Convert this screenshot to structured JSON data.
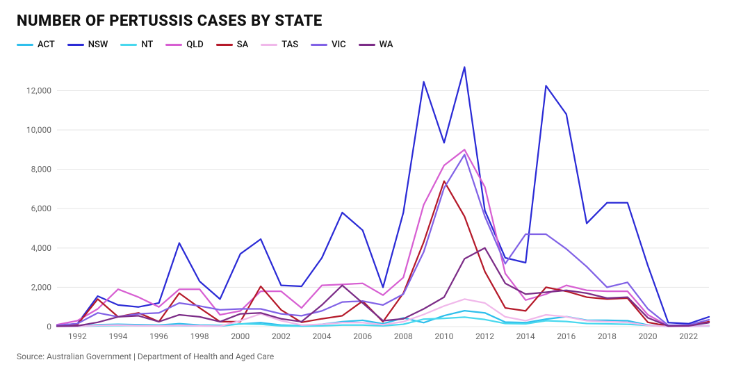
{
  "chart": {
    "type": "line",
    "title": "NUMBER OF PERTUSSIS CASES BY STATE",
    "source": "Source: Australian Government | Department of Health and Aged Care",
    "background_color": "#ffffff",
    "grid_color": "#e5e5e5",
    "axis_text_color": "#666666",
    "title_fontsize": 22,
    "title_weight": 800,
    "label_fontsize": 12,
    "legend_fontsize": 13,
    "line_width": 2.25,
    "years": [
      1991,
      1992,
      1993,
      1994,
      1995,
      1996,
      1997,
      1998,
      1999,
      2000,
      2001,
      2002,
      2003,
      2004,
      2005,
      2006,
      2007,
      2008,
      2009,
      2010,
      2011,
      2012,
      2013,
      2014,
      2015,
      2016,
      2017,
      2018,
      2019,
      2020,
      2021,
      2022,
      2023
    ],
    "x_axis": {
      "ticks": [
        1992,
        1994,
        1996,
        1998,
        2000,
        2002,
        2004,
        2006,
        2008,
        2010,
        2012,
        2014,
        2016,
        2018,
        2020,
        2022
      ],
      "xlim": [
        1991,
        2023
      ]
    },
    "y_axis": {
      "ticks": [
        0,
        2000,
        4000,
        6000,
        8000,
        10000,
        12000
      ],
      "tick_labels": [
        "0",
        "2,000",
        "4,000",
        "6,000",
        "8,000",
        "10,000",
        "12,000"
      ],
      "ylim": [
        0,
        13500
      ]
    },
    "series": [
      {
        "id": "act",
        "label": "ACT",
        "color": "#2fbfec",
        "values": [
          10,
          20,
          100,
          120,
          100,
          80,
          150,
          80,
          60,
          130,
          200,
          80,
          40,
          120,
          250,
          320,
          150,
          440,
          200,
          560,
          810,
          700,
          230,
          200,
          380,
          510,
          330,
          320,
          300,
          80,
          5,
          10,
          50
        ]
      },
      {
        "id": "nsw",
        "label": "NSW",
        "color": "#2b2bd6",
        "values": [
          80,
          140,
          1550,
          1100,
          1000,
          1200,
          4250,
          2300,
          1400,
          3700,
          4450,
          2100,
          2050,
          3500,
          5800,
          4900,
          2000,
          5800,
          12450,
          9350,
          13200,
          5900,
          3500,
          3250,
          12250,
          10800,
          5250,
          6300,
          6300,
          3100,
          200,
          150,
          500
        ]
      },
      {
        "id": "nt",
        "label": "NT",
        "color": "#49d8ee",
        "values": [
          5,
          10,
          40,
          60,
          50,
          40,
          50,
          40,
          20,
          140,
          120,
          40,
          20,
          40,
          80,
          80,
          40,
          120,
          380,
          420,
          480,
          360,
          160,
          140,
          300,
          260,
          160,
          140,
          120,
          60,
          5,
          5,
          30
        ]
      },
      {
        "id": "qld",
        "label": "QLD",
        "color": "#d75fd2",
        "values": [
          100,
          300,
          900,
          1900,
          1500,
          1000,
          1900,
          1900,
          600,
          800,
          1800,
          1800,
          950,
          2100,
          2150,
          2200,
          1600,
          2500,
          6200,
          8200,
          9000,
          7100,
          2700,
          1350,
          1650,
          2100,
          1850,
          1800,
          1800,
          600,
          40,
          50,
          250
        ]
      },
      {
        "id": "sa",
        "label": "SA",
        "color": "#b51a2a",
        "values": [
          50,
          100,
          1400,
          500,
          700,
          250,
          1700,
          950,
          250,
          250,
          2050,
          850,
          220,
          400,
          550,
          1300,
          250,
          1700,
          4300,
          7400,
          5600,
          2800,
          950,
          800,
          2000,
          1800,
          1500,
          1400,
          1450,
          220,
          30,
          30,
          250
        ]
      },
      {
        "id": "tas",
        "label": "TAS",
        "color": "#f0b8ea",
        "values": [
          5,
          10,
          60,
          80,
          50,
          40,
          60,
          40,
          20,
          300,
          650,
          300,
          80,
          120,
          200,
          200,
          100,
          250,
          620,
          1050,
          1400,
          1200,
          500,
          300,
          600,
          500,
          300,
          250,
          220,
          60,
          5,
          5,
          40
        ]
      },
      {
        "id": "vic",
        "label": "VIC",
        "color": "#8162e6",
        "values": [
          60,
          150,
          700,
          500,
          650,
          700,
          1200,
          1050,
          850,
          900,
          900,
          650,
          550,
          800,
          1250,
          1300,
          1100,
          1650,
          3800,
          7050,
          8750,
          5600,
          3200,
          4700,
          4700,
          3950,
          3050,
          2000,
          2250,
          900,
          70,
          80,
          350
        ]
      },
      {
        "id": "wa",
        "label": "WA",
        "color": "#7c2d87",
        "values": [
          20,
          40,
          220,
          500,
          550,
          250,
          600,
          500,
          250,
          650,
          700,
          400,
          250,
          1100,
          2100,
          1200,
          300,
          400,
          900,
          1500,
          3450,
          4000,
          2200,
          1650,
          1750,
          1850,
          1700,
          1450,
          1500,
          450,
          30,
          40,
          200
        ]
      }
    ]
  }
}
